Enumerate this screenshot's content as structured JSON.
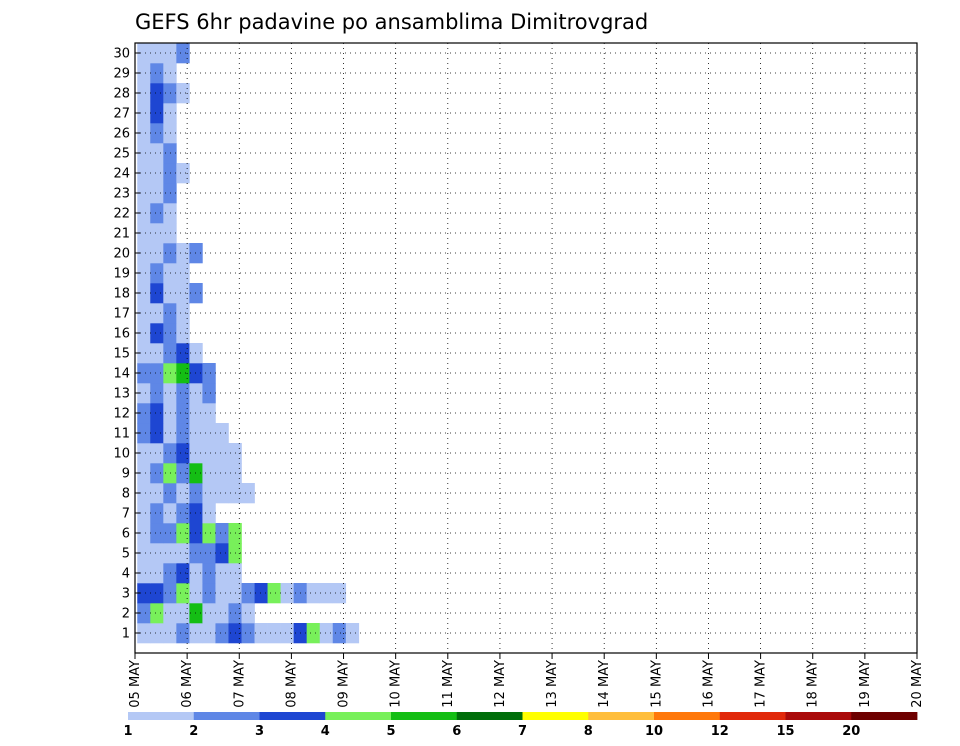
{
  "chart_data": {
    "type": "heatmap",
    "title": "GEFS 6hr padavine po ansamblima Dimitrovgrad",
    "xlabel": "",
    "ylabel": "",
    "y_members": [
      1,
      30
    ],
    "y_tick_labels": [
      "1",
      "2",
      "3",
      "4",
      "5",
      "6",
      "7",
      "8",
      "9",
      "10",
      "11",
      "12",
      "13",
      "14",
      "15",
      "16",
      "17",
      "18",
      "19",
      "20",
      "21",
      "22",
      "23",
      "24",
      "25",
      "26",
      "27",
      "28",
      "29",
      "30"
    ],
    "x_range_days": [
      0,
      15
    ],
    "x_tick_labels": [
      "05 MAY",
      "06 MAY",
      "07 MAY",
      "08 MAY",
      "09 MAY",
      "10 MAY",
      "11 MAY",
      "12 MAY",
      "13 MAY",
      "14 MAY",
      "15 MAY",
      "16 MAY",
      "17 MAY",
      "18 MAY",
      "19 MAY",
      "20 MAY"
    ],
    "grid": true,
    "steps_per_day": 4,
    "colorbar": {
      "tick_labels": [
        "1",
        "2",
        "3",
        "4",
        "5",
        "6",
        "7",
        "8",
        "10",
        "12",
        "15",
        "20"
      ],
      "colors": [
        "#b4c8f5",
        "#5f87e6",
        "#1e46d2",
        "#78f05a",
        "#14be14",
        "#006e0a",
        "#ffff00",
        "#ffbe3c",
        "#ff780a",
        "#e1280a",
        "#aa0a0a",
        "#6e0000"
      ]
    },
    "cells": [
      [
        1,
        1,
        0
      ],
      [
        1,
        1,
        1
      ],
      [
        1,
        1,
        2
      ],
      [
        2,
        1,
        3
      ],
      [
        1,
        1,
        4
      ],
      [
        1,
        1,
        5
      ],
      [
        2,
        1,
        6
      ],
      [
        3,
        1,
        7
      ],
      [
        2,
        1,
        8
      ],
      [
        1,
        1,
        9
      ],
      [
        1,
        1,
        10
      ],
      [
        1,
        1,
        11
      ],
      [
        3,
        1,
        12
      ],
      [
        4,
        1,
        13
      ],
      [
        1,
        1,
        14
      ],
      [
        2,
        1,
        15
      ],
      [
        1,
        1,
        16
      ],
      [
        2,
        2,
        0
      ],
      [
        4,
        2,
        1
      ],
      [
        1,
        2,
        2
      ],
      [
        1,
        2,
        3
      ],
      [
        5,
        2,
        4
      ],
      [
        1,
        2,
        5
      ],
      [
        1,
        2,
        6
      ],
      [
        2,
        2,
        7
      ],
      [
        1,
        2,
        8
      ],
      [
        3,
        3,
        0
      ],
      [
        3,
        3,
        1
      ],
      [
        2,
        3,
        2
      ],
      [
        4,
        3,
        3
      ],
      [
        1,
        3,
        4
      ],
      [
        2,
        3,
        5
      ],
      [
        1,
        3,
        6
      ],
      [
        1,
        3,
        7
      ],
      [
        2,
        3,
        8
      ],
      [
        3,
        3,
        9
      ],
      [
        4,
        3,
        10
      ],
      [
        1,
        3,
        11
      ],
      [
        2,
        3,
        12
      ],
      [
        1,
        3,
        13
      ],
      [
        1,
        3,
        14
      ],
      [
        1,
        3,
        15
      ],
      [
        1,
        4,
        0
      ],
      [
        1,
        4,
        1
      ],
      [
        2,
        4,
        2
      ],
      [
        3,
        4,
        3
      ],
      [
        1,
        4,
        4
      ],
      [
        2,
        4,
        5
      ],
      [
        1,
        4,
        6
      ],
      [
        1,
        4,
        7
      ],
      [
        1,
        5,
        0
      ],
      [
        1,
        5,
        1
      ],
      [
        1,
        5,
        2
      ],
      [
        1,
        5,
        3
      ],
      [
        2,
        5,
        4
      ],
      [
        2,
        5,
        5
      ],
      [
        3,
        5,
        6
      ],
      [
        4,
        5,
        7
      ],
      [
        1,
        6,
        0
      ],
      [
        2,
        6,
        1
      ],
      [
        2,
        6,
        2
      ],
      [
        4,
        6,
        3
      ],
      [
        3,
        6,
        4
      ],
      [
        4,
        6,
        5
      ],
      [
        2,
        6,
        6
      ],
      [
        4,
        6,
        7
      ],
      [
        1,
        7,
        0
      ],
      [
        2,
        7,
        1
      ],
      [
        1,
        7,
        2
      ],
      [
        2,
        7,
        3
      ],
      [
        3,
        7,
        4
      ],
      [
        1,
        7,
        5
      ],
      [
        1,
        8,
        0
      ],
      [
        1,
        8,
        1
      ],
      [
        2,
        8,
        2
      ],
      [
        1,
        8,
        3
      ],
      [
        2,
        8,
        4
      ],
      [
        1,
        8,
        5
      ],
      [
        1,
        8,
        6
      ],
      [
        1,
        8,
        7
      ],
      [
        1,
        8,
        8
      ],
      [
        1,
        9,
        0
      ],
      [
        2,
        9,
        1
      ],
      [
        4,
        9,
        2
      ],
      [
        2,
        9,
        3
      ],
      [
        5,
        9,
        4
      ],
      [
        1,
        9,
        5
      ],
      [
        1,
        9,
        6
      ],
      [
        1,
        9,
        7
      ],
      [
        1,
        10,
        0
      ],
      [
        1,
        10,
        1
      ],
      [
        2,
        10,
        2
      ],
      [
        3,
        10,
        3
      ],
      [
        1,
        10,
        4
      ],
      [
        1,
        10,
        5
      ],
      [
        1,
        10,
        6
      ],
      [
        1,
        10,
        7
      ],
      [
        2,
        11,
        0
      ],
      [
        3,
        11,
        1
      ],
      [
        1,
        11,
        2
      ],
      [
        2,
        11,
        3
      ],
      [
        1,
        11,
        4
      ],
      [
        1,
        11,
        5
      ],
      [
        1,
        11,
        6
      ],
      [
        2,
        12,
        0
      ],
      [
        3,
        12,
        1
      ],
      [
        1,
        12,
        2
      ],
      [
        2,
        12,
        3
      ],
      [
        1,
        12,
        4
      ],
      [
        1,
        12,
        5
      ],
      [
        1,
        13,
        0
      ],
      [
        2,
        13,
        1
      ],
      [
        1,
        13,
        2
      ],
      [
        2,
        13,
        3
      ],
      [
        1,
        13,
        4
      ],
      [
        2,
        13,
        5
      ],
      [
        2,
        14,
        0
      ],
      [
        2,
        14,
        1
      ],
      [
        4,
        14,
        2
      ],
      [
        5,
        14,
        3
      ],
      [
        3,
        14,
        4
      ],
      [
        2,
        14,
        5
      ],
      [
        1,
        15,
        0
      ],
      [
        1,
        15,
        1
      ],
      [
        2,
        15,
        2
      ],
      [
        3,
        15,
        3
      ],
      [
        1,
        15,
        4
      ],
      [
        1,
        16,
        0
      ],
      [
        3,
        16,
        1
      ],
      [
        2,
        16,
        2
      ],
      [
        1,
        16,
        3
      ],
      [
        1,
        17,
        0
      ],
      [
        1,
        17,
        1
      ],
      [
        2,
        17,
        2
      ],
      [
        1,
        17,
        3
      ],
      [
        1,
        18,
        0
      ],
      [
        3,
        18,
        1
      ],
      [
        1,
        18,
        2
      ],
      [
        1,
        18,
        3
      ],
      [
        2,
        18,
        4
      ],
      [
        1,
        19,
        0
      ],
      [
        2,
        19,
        1
      ],
      [
        1,
        19,
        2
      ],
      [
        1,
        19,
        3
      ],
      [
        1,
        20,
        0
      ],
      [
        1,
        20,
        1
      ],
      [
        2,
        20,
        2
      ],
      [
        1,
        20,
        3
      ],
      [
        2,
        20,
        4
      ],
      [
        1,
        21,
        0
      ],
      [
        1,
        21,
        1
      ],
      [
        1,
        21,
        2
      ],
      [
        1,
        22,
        0
      ],
      [
        2,
        22,
        1
      ],
      [
        1,
        22,
        2
      ],
      [
        1,
        23,
        0
      ],
      [
        1,
        23,
        1
      ],
      [
        2,
        23,
        2
      ],
      [
        1,
        24,
        0
      ],
      [
        1,
        24,
        1
      ],
      [
        2,
        24,
        2
      ],
      [
        1,
        24,
        3
      ],
      [
        1,
        25,
        0
      ],
      [
        1,
        25,
        1
      ],
      [
        2,
        25,
        2
      ],
      [
        1,
        26,
        0
      ],
      [
        2,
        26,
        1
      ],
      [
        1,
        26,
        2
      ],
      [
        1,
        27,
        0
      ],
      [
        3,
        27,
        1
      ],
      [
        1,
        27,
        2
      ],
      [
        1,
        28,
        0
      ],
      [
        3,
        28,
        1
      ],
      [
        2,
        28,
        2
      ],
      [
        1,
        28,
        3
      ],
      [
        1,
        29,
        0
      ],
      [
        2,
        29,
        1
      ],
      [
        1,
        29,
        2
      ],
      [
        1,
        30,
        0
      ],
      [
        1,
        30,
        1
      ],
      [
        1,
        30,
        2
      ],
      [
        2,
        30,
        3
      ]
    ]
  }
}
